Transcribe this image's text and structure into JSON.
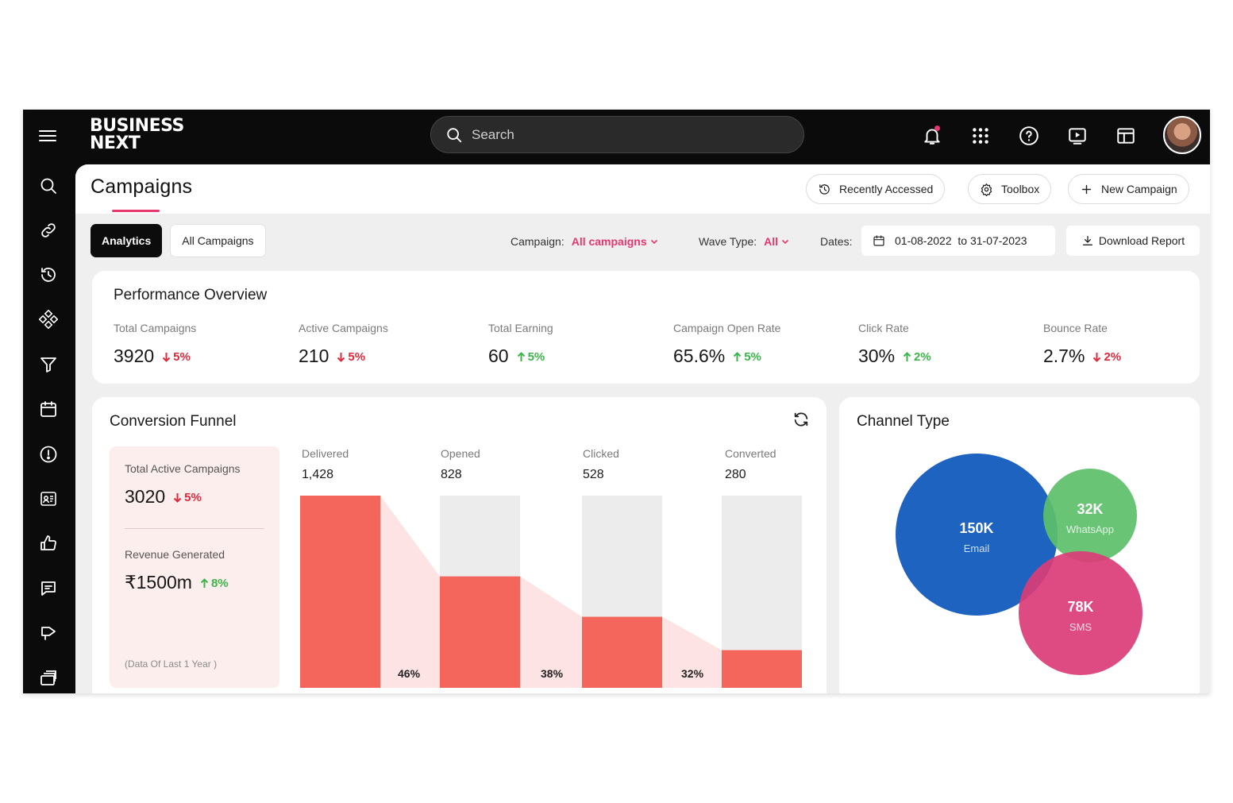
{
  "app": {
    "logo_line1": "BUSINESS",
    "logo_line2": "NEXT",
    "search_placeholder": "Search"
  },
  "topbar_icons": [
    "bell-icon",
    "apps-grid-icon",
    "help-icon",
    "play-video-icon",
    "layout-icon"
  ],
  "sidebar_icons": [
    "search-icon",
    "link-icon",
    "history-icon",
    "modules-icon",
    "filter-icon",
    "calendar-icon",
    "alert-icon",
    "id-card-icon",
    "thumbs-up-icon",
    "message-icon",
    "campaign-icon",
    "stack-icon"
  ],
  "header": {
    "title": "Campaigns",
    "recently_accessed": "Recently Accessed",
    "toolbox": "Toolbox",
    "new_campaign": "New Campaign"
  },
  "tabs": {
    "analytics": "Analytics",
    "all_campaigns": "All Campaigns"
  },
  "filters": {
    "campaign_label": "Campaign:",
    "campaign_value": "All campaigns",
    "wave_label": "Wave Type:",
    "wave_value": "All",
    "dates_label": "Dates:",
    "dates_value": "01-08-2022  to 31-07-2023",
    "download": "Download Report"
  },
  "performance": {
    "title": "Performance Overview",
    "metrics": [
      {
        "label": "Total Campaigns",
        "value": "3920",
        "change": "5%",
        "direction": "down"
      },
      {
        "label": "Active Campaigns",
        "value": "210",
        "change": "5%",
        "direction": "down"
      },
      {
        "label": "Total Earning",
        "value": "60",
        "change": "5%",
        "direction": "up"
      },
      {
        "label": "Campaign Open Rate",
        "value": "65.6%",
        "change": "5%",
        "direction": "up"
      },
      {
        "label": "Click Rate",
        "value": "30%",
        "change": "2%",
        "direction": "up"
      },
      {
        "label": "Bounce Rate",
        "value": "2.7%",
        "change": "2%",
        "direction": "down"
      }
    ]
  },
  "funnel": {
    "title": "Conversion Funnel",
    "total_active_label": "Total Active Campaigns",
    "total_active_value": "3020",
    "total_active_change": "5%",
    "revenue_label": "Revenue Generated",
    "revenue_value": "₹1500m",
    "revenue_change": "8%",
    "note": "(Data Of Last 1 Year )",
    "stages": [
      {
        "label": "Delivered",
        "value": "1,428"
      },
      {
        "label": "Opened",
        "value": "828"
      },
      {
        "label": "Clicked",
        "value": "528"
      },
      {
        "label": "Converted",
        "value": "280"
      }
    ],
    "conversion_pcts": [
      "46%",
      "38%",
      "32%"
    ],
    "colors": {
      "bar": "#f4655b",
      "track": "#ececec",
      "connector": "#fde3e3"
    }
  },
  "chart_data": {
    "type": "funnel",
    "categories": [
      "Delivered",
      "Opened",
      "Clicked",
      "Converted"
    ],
    "values": [
      1428,
      828,
      528,
      280
    ],
    "conversion_labels": [
      "46%",
      "38%",
      "32%"
    ]
  },
  "channel": {
    "title": "Channel Type",
    "items": [
      {
        "value": "150K",
        "label": "Email",
        "color": "#1f63c1"
      },
      {
        "value": "32K",
        "label": "WhatsApp",
        "color": "#5cbf6a"
      },
      {
        "value": "78K",
        "label": "SMS",
        "color": "#db3c77"
      }
    ]
  }
}
